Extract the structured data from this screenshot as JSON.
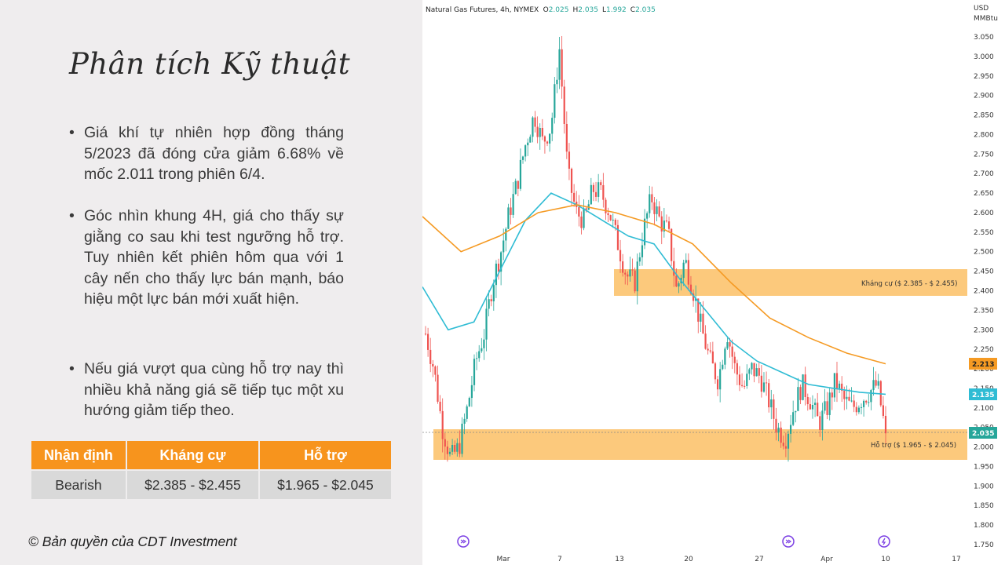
{
  "slide": {
    "title": "Phân tích Kỹ thuật",
    "bullets": [
      "Giá khí tự nhiên hợp đồng tháng 5/2023 đã đóng cửa giảm 6.68% về mốc 2.011 trong phiên 6/4.",
      "Góc nhìn khung 4H, giá cho thấy sự giằng co sau khi test ngưỡng hỗ trợ. Tuy nhiên kết phiên hôm qua với 1 cây nến cho thấy lực bán mạnh, báo hiệu một lực bán mới xuất hiện.",
      "Nếu giá vượt qua cùng hỗ trợ nay thì nhiều khả năng giá sẽ tiếp tục một xu hướng giảm tiếp theo."
    ],
    "table": {
      "headers": [
        "Nhận định",
        "Kháng cự",
        "Hỗ trợ"
      ],
      "row": [
        "Bearish",
        "$2.385 - $2.455",
        "$1.965 - $2.045"
      ]
    },
    "copyright": "© Bản quyền của CDT Investment"
  },
  "chart_header": {
    "symbol": "Natural Gas Futures, 4h, NYMEX",
    "o_label": "O",
    "o_value": "2.025",
    "h_label": "H",
    "h_value": "2.035",
    "l_label": "L",
    "l_value": "1.992",
    "c_label": "C",
    "c_value": "2.035"
  },
  "axis": {
    "currency": "USD",
    "unit": "MMBtu",
    "ticks": [
      "3.050",
      "3.000",
      "2.950",
      "2.900",
      "2.850",
      "2.800",
      "2.750",
      "2.700",
      "2.650",
      "2.600",
      "2.550",
      "2.500",
      "2.450",
      "2.400",
      "2.350",
      "2.300",
      "2.250",
      "2.200",
      "2.150",
      "2.100",
      "2.050",
      "2.000",
      "1.950",
      "1.900",
      "1.850",
      "1.800",
      "1.750"
    ],
    "x_labels": [
      "Mar",
      "7",
      "13",
      "20",
      "27",
      "Apr",
      "10",
      "17"
    ],
    "price_tags": {
      "ema_slow": "2.213",
      "ema_fast": "2.135",
      "last": "2.035"
    }
  },
  "zones": {
    "resistance_label": "Kháng cự ($ 2.385 - $ 2.455)",
    "support_label": "Hỗ trợ ($ 1.965 - $ 2.045)"
  },
  "colors": {
    "accent": "#f7941d",
    "zone": "#fcc97c",
    "up": "#26a69a",
    "down": "#ef5350",
    "ema_fast": "#2fbcd4",
    "ema_slow": "#f59a23",
    "event_icon": "#7b3fe4"
  },
  "chart_data": {
    "type": "candlestick",
    "ylim": [
      1.75,
      3.05
    ],
    "resistance": [
      2.385,
      2.455
    ],
    "support": [
      1.965,
      2.045
    ],
    "last_close": 2.035,
    "ohlc_approx": {
      "series_close": [
        2.29,
        2.2,
        2.05,
        1.97,
        2.0,
        2.1,
        2.22,
        2.29,
        2.42,
        2.5,
        2.6,
        2.68,
        2.78,
        2.85,
        2.78,
        2.82,
        3.02,
        2.7,
        2.6,
        2.58,
        2.66,
        2.65,
        2.6,
        2.52,
        2.44,
        2.42,
        2.55,
        2.64,
        2.58,
        2.55,
        2.4,
        2.48,
        2.4,
        2.3,
        2.22,
        2.17,
        2.3,
        2.2,
        2.15,
        2.2,
        2.18,
        2.12,
        2.05,
        2.02,
        2.1,
        2.16,
        2.12,
        2.06,
        2.1,
        2.17,
        2.12,
        2.1,
        2.12,
        2.14,
        2.16,
        2.035
      ]
    },
    "ema_fast_approx": [
      2.41,
      2.3,
      2.32,
      2.45,
      2.58,
      2.65,
      2.62,
      2.58,
      2.54,
      2.52,
      2.43,
      2.35,
      2.27,
      2.22,
      2.19,
      2.16,
      2.15,
      2.14,
      2.135
    ],
    "ema_slow_approx": [
      2.59,
      2.5,
      2.54,
      2.6,
      2.62,
      2.6,
      2.57,
      2.52,
      2.42,
      2.33,
      2.28,
      2.24,
      2.213
    ]
  }
}
